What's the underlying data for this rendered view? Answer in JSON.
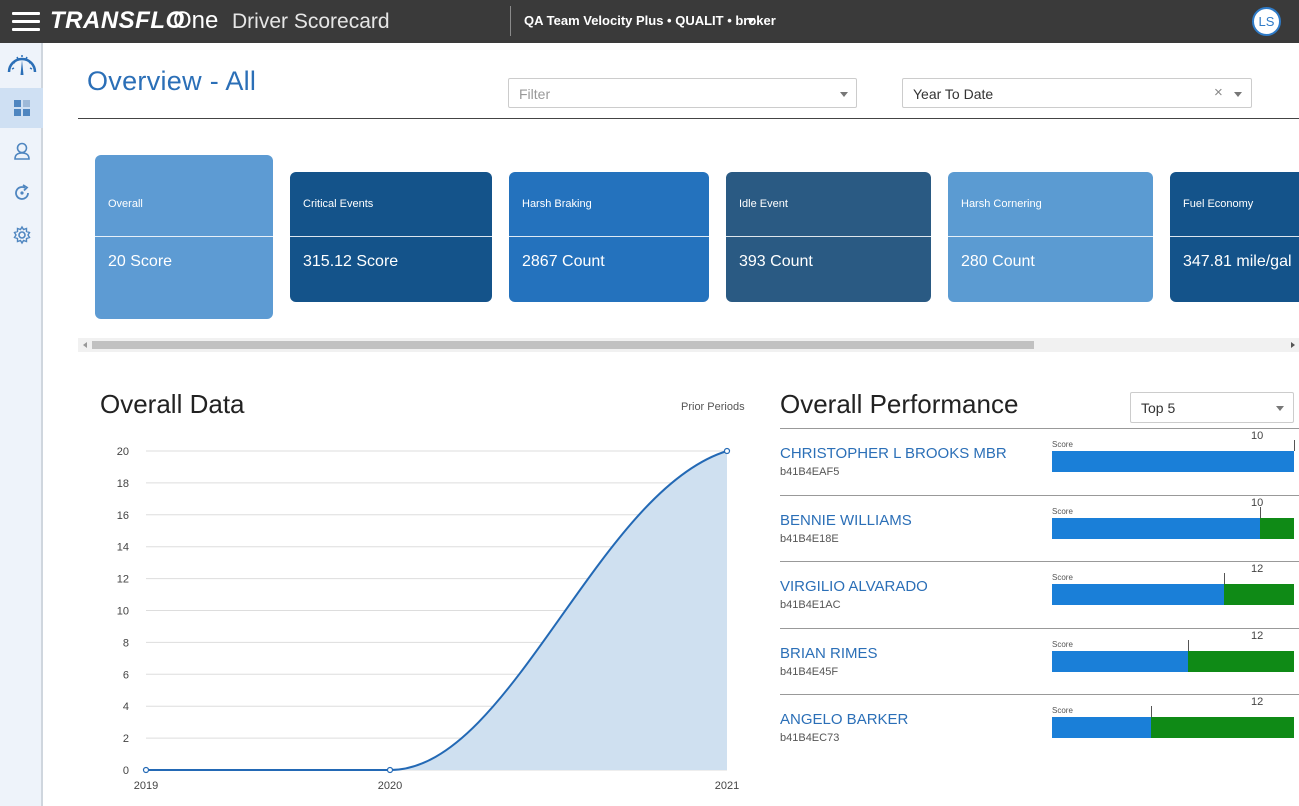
{
  "header": {
    "brand": "TRANSFLO",
    "brand_suffix": "One",
    "app_title": "Driver Scorecard",
    "account": "QA Team Velocity Plus • QUALIT • broker",
    "avatar_initials": "LS"
  },
  "sidebar": {
    "items": [
      {
        "icon": "speedometer-icon"
      },
      {
        "icon": "dashboard-icon"
      },
      {
        "icon": "driver-icon"
      },
      {
        "icon": "refresh-icon"
      },
      {
        "icon": "gear-icon"
      }
    ]
  },
  "page": {
    "title": "Overview - All",
    "filter_placeholder": "Filter",
    "period_value": "Year To Date",
    "period_clear": "×"
  },
  "cards": [
    {
      "title": "Overall",
      "value": "20 Score",
      "color": "#5d9bd3"
    },
    {
      "title": "Critical Events",
      "value": "315.12 Score",
      "color": "#14538a"
    },
    {
      "title": "Harsh Braking",
      "value": "2867 Count",
      "color": "#2472bd"
    },
    {
      "title": "Idle Event",
      "value": "393 Count",
      "color": "#2a5a83"
    },
    {
      "title": "Harsh Cornering",
      "value": "280 Count",
      "color": "#5b9bd2"
    },
    {
      "title": "Fuel Economy",
      "value": "347.81 mile/gal",
      "color": "#14538a"
    }
  ],
  "overall_data": {
    "title": "Overall Data",
    "prior_periods": "Prior Periods"
  },
  "chart_data": {
    "type": "area",
    "x": [
      "2019",
      "2020",
      "2021"
    ],
    "values": [
      0,
      0,
      20
    ],
    "ylim": [
      0,
      20
    ],
    "yticks": [
      0,
      2,
      4,
      6,
      8,
      10,
      12,
      14,
      16,
      18,
      20
    ],
    "grid": true,
    "line_color": "#2369b5",
    "fill_color": "#cfe0f0"
  },
  "performance": {
    "title": "Overall Performance",
    "top_select": "Top 5",
    "score_label": "Score",
    "rows": [
      {
        "name": "CHRISTOPHER L BROOKS MBR",
        "id": "b41B4EAF5",
        "target": "10",
        "fill_fraction": 1.0,
        "tick_fraction": 1.0
      },
      {
        "name": "BENNIE WILLIAMS",
        "id": "b41B4E18E",
        "target": "10",
        "fill_fraction": 0.86,
        "tick_fraction": 0.86
      },
      {
        "name": "VIRGILIO ALVARADO",
        "id": "b41B4E1AC",
        "target": "12",
        "fill_fraction": 0.71,
        "tick_fraction": 0.71
      },
      {
        "name": "BRIAN RIMES",
        "id": "b41B4E45F",
        "target": "12",
        "fill_fraction": 0.56,
        "tick_fraction": 0.56
      },
      {
        "name": "ANGELO BARKER",
        "id": "b41B4EC73",
        "target": "12",
        "fill_fraction": 0.41,
        "tick_fraction": 0.41
      }
    ],
    "fill_color": "#1a7fd8",
    "remainder_color": "#0f8a16"
  }
}
